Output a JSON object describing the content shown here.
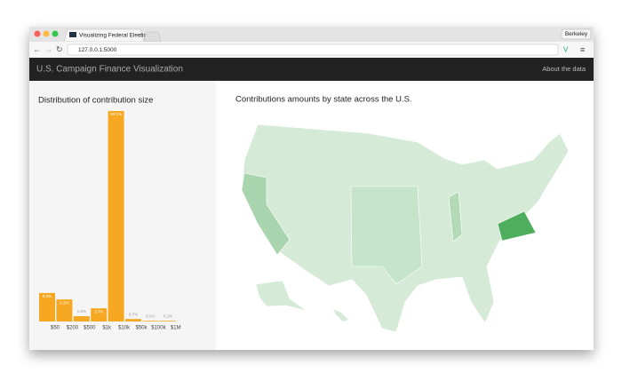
{
  "browser": {
    "tab_title": "Visualizing Federal Electio",
    "url": "127.0.0.1:5000",
    "profile": "Berkeley"
  },
  "navbar": {
    "brand": "U.S. Campaign Finance Visualization",
    "link": "About the data"
  },
  "chart_data": {
    "type": "bar",
    "title": "Distribution of contribution size",
    "categories": [
      "$50",
      "$200",
      "$500",
      "$1k",
      "$10k",
      "$50k",
      "$100k",
      "$1M"
    ],
    "values": [
      8.0,
      6.2,
      1.5,
      3.7,
      59.1,
      0.7,
      0.2,
      0.2
    ],
    "value_labels": [
      "8.0%",
      "6.2%",
      "1.5%",
      "3.7%",
      "59.1%",
      "0.7%",
      "0.2%",
      "0.2%"
    ],
    "color": "#f7a823"
  },
  "map": {
    "title": "Contributions amounts by state across the U.S."
  }
}
